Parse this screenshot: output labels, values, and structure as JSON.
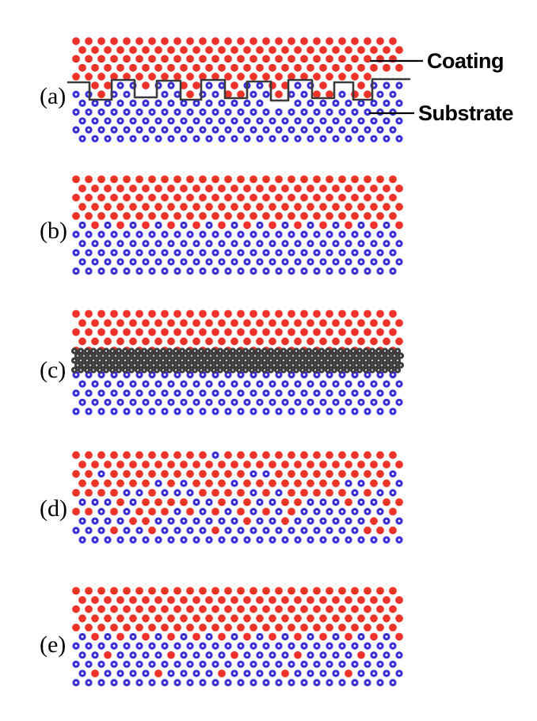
{
  "figure": {
    "panels": [
      {
        "label": "(a)"
      },
      {
        "label": "(b)"
      },
      {
        "label": "(c)"
      },
      {
        "label": "(d)"
      },
      {
        "label": "(e)"
      }
    ],
    "annotations": {
      "coating_label": "Coating",
      "substrate_label": "Substrate"
    },
    "colors": {
      "coating_dots": "#ec3329",
      "substrate_dots": "#3a2fd5",
      "compound_layer": "#3b3b3b",
      "interface_line": "#3a3a3a",
      "leader_line": "#000000",
      "text": "#000000",
      "background": "#ffffff"
    }
  }
}
